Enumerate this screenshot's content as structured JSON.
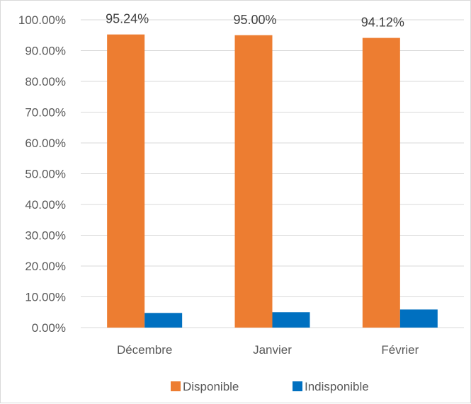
{
  "chart_data": {
    "type": "bar",
    "title": "",
    "xlabel": "",
    "ylabel": "",
    "categories": [
      "Décembre",
      "Janvier",
      "Février"
    ],
    "series": [
      {
        "name": "Disponible",
        "values": [
          95.24,
          95.0,
          94.12
        ],
        "color": "#ED7D31"
      },
      {
        "name": "Indisponible",
        "values": [
          4.76,
          5.0,
          5.88
        ],
        "color": "#0070C0"
      }
    ],
    "data_labels": [
      "95.24%",
      "95.00%",
      "94.12%"
    ],
    "ylim": [
      0,
      100
    ],
    "yticks": [
      "0.00%",
      "10.00%",
      "20.00%",
      "30.00%",
      "40.00%",
      "50.00%",
      "60.00%",
      "70.00%",
      "80.00%",
      "90.00%",
      "100.00%"
    ],
    "grid": true,
    "legend_position": "bottom"
  }
}
